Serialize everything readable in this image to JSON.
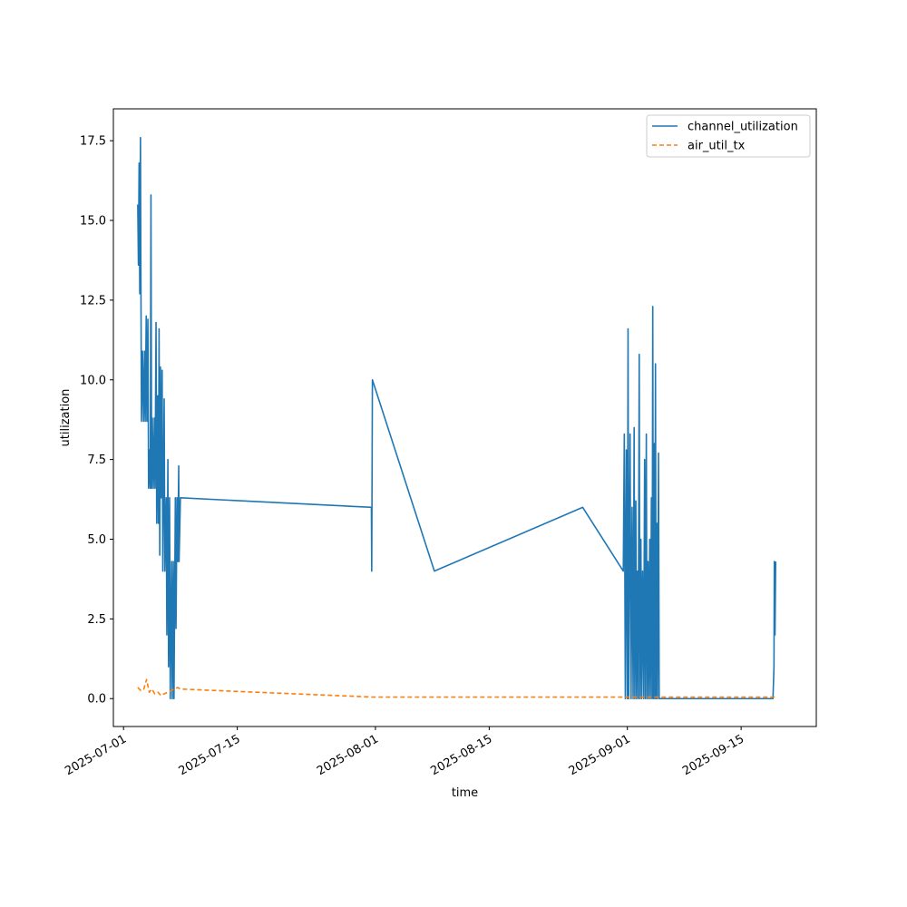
{
  "chart_data": {
    "type": "line",
    "title": "",
    "xlabel": "time",
    "ylabel": "utilization",
    "x_scale": "date",
    "xlim": [
      "2025-06-29T18:00",
      "2025-09-24T06:00"
    ],
    "ylim": [
      -0.875,
      18.5
    ],
    "x_ticks": [
      "2025-07-01",
      "2025-07-15",
      "2025-08-01",
      "2025-08-15",
      "2025-09-01",
      "2025-09-15"
    ],
    "y_ticks": [
      "0.0",
      "2.5",
      "5.0",
      "7.5",
      "10.0",
      "12.5",
      "15.0",
      "17.5"
    ],
    "grid": false,
    "legend_position": "top-right",
    "series": [
      {
        "name": "channel_utilization",
        "color": "#1f77b4",
        "style": "solid",
        "points": [
          [
            "2025-07-02T18:00",
            15.5
          ],
          [
            "2025-07-02T20:00",
            13.6
          ],
          [
            "2025-07-02T22:00",
            16.8
          ],
          [
            "2025-07-03T00:00",
            12.7
          ],
          [
            "2025-07-03T02:00",
            17.6
          ],
          [
            "2025-07-03T03:00",
            14.0
          ],
          [
            "2025-07-03T05:00",
            8.7
          ],
          [
            "2025-07-03T08:00",
            10.9
          ],
          [
            "2025-07-03T11:00",
            8.7
          ],
          [
            "2025-07-03T14:00",
            10.9
          ],
          [
            "2025-07-03T16:00",
            8.7
          ],
          [
            "2025-07-03T19:00",
            12.0
          ],
          [
            "2025-07-03T21:00",
            8.7
          ],
          [
            "2025-07-04T00:00",
            11.9
          ],
          [
            "2025-07-04T02:00",
            6.6
          ],
          [
            "2025-07-04T05:00",
            7.8
          ],
          [
            "2025-07-04T07:00",
            6.6
          ],
          [
            "2025-07-04T09:00",
            15.8
          ],
          [
            "2025-07-04T11:00",
            6.6
          ],
          [
            "2025-07-04T13:00",
            8.8
          ],
          [
            "2025-07-04T16:00",
            6.6
          ],
          [
            "2025-07-04T19:00",
            8.8
          ],
          [
            "2025-07-04T21:00",
            6.6
          ],
          [
            "2025-07-05T00:00",
            11.8
          ],
          [
            "2025-07-05T02:00",
            5.5
          ],
          [
            "2025-07-05T05:00",
            9.5
          ],
          [
            "2025-07-05T07:00",
            5.5
          ],
          [
            "2025-07-05T09:00",
            11.6
          ],
          [
            "2025-07-05T11:00",
            4.5
          ],
          [
            "2025-07-05T13:00",
            10.4
          ],
          [
            "2025-07-05T15:00",
            6.3
          ],
          [
            "2025-07-05T18:00",
            10.3
          ],
          [
            "2025-07-05T20:00",
            4.0
          ],
          [
            "2025-07-06T00:00",
            9.4
          ],
          [
            "2025-07-06T02:00",
            4.0
          ],
          [
            "2025-07-06T06:00",
            6.3
          ],
          [
            "2025-07-06T08:00",
            2.0
          ],
          [
            "2025-07-06T11:00",
            7.5
          ],
          [
            "2025-07-06T13:00",
            1.0
          ],
          [
            "2025-07-06T16:00",
            6.3
          ],
          [
            "2025-07-06T18:00",
            0.0
          ],
          [
            "2025-07-06T22:00",
            4.3
          ],
          [
            "2025-07-07T00:00",
            0.0
          ],
          [
            "2025-07-07T03:00",
            4.3
          ],
          [
            "2025-07-07T05:00",
            0.0
          ],
          [
            "2025-07-07T09:00",
            6.3
          ],
          [
            "2025-07-07T11:00",
            2.2
          ],
          [
            "2025-07-07T14:00",
            6.3
          ],
          [
            "2025-07-07T16:00",
            4.3
          ],
          [
            "2025-07-07T19:00",
            7.3
          ],
          [
            "2025-07-07T20:00",
            4.3
          ],
          [
            "2025-07-08T00:00",
            6.3
          ],
          [
            "2025-07-31T12:00",
            6.0
          ],
          [
            "2025-07-31T13:00",
            4.0
          ],
          [
            "2025-07-31T15:00",
            10.0
          ],
          [
            "2025-08-08T06:00",
            4.0
          ],
          [
            "2025-08-26T12:00",
            6.0
          ],
          [
            "2025-08-31T12:00",
            4.0
          ],
          [
            "2025-08-31T15:00",
            8.3
          ],
          [
            "2025-08-31T18:00",
            0.0
          ],
          [
            "2025-08-31T21:00",
            7.8
          ],
          [
            "2025-09-01T00:00",
            0.0
          ],
          [
            "2025-09-01T02:00",
            11.6
          ],
          [
            "2025-09-01T04:00",
            0.0
          ],
          [
            "2025-09-01T08:00",
            8.3
          ],
          [
            "2025-09-01T11:00",
            0.0
          ],
          [
            "2025-09-01T14:00",
            6.0
          ],
          [
            "2025-09-01T17:00",
            0.0
          ],
          [
            "2025-09-01T20:00",
            8.5
          ],
          [
            "2025-09-01T22:00",
            0.0
          ],
          [
            "2025-09-02T01:00",
            6.2
          ],
          [
            "2025-09-02T03:00",
            0.0
          ],
          [
            "2025-09-02T06:00",
            4.0
          ],
          [
            "2025-09-02T08:00",
            0.0
          ],
          [
            "2025-09-02T11:00",
            10.8
          ],
          [
            "2025-09-02T13:00",
            0.0
          ],
          [
            "2025-09-02T16:00",
            5.0
          ],
          [
            "2025-09-02T18:00",
            0.0
          ],
          [
            "2025-09-02T21:00",
            4.0
          ],
          [
            "2025-09-03T00:00",
            0.0
          ],
          [
            "2025-09-03T03:00",
            7.5
          ],
          [
            "2025-09-03T05:00",
            0.0
          ],
          [
            "2025-09-03T08:00",
            8.3
          ],
          [
            "2025-09-03T10:00",
            0.0
          ],
          [
            "2025-09-03T13:00",
            4.3
          ],
          [
            "2025-09-03T15:00",
            0.0
          ],
          [
            "2025-09-03T18:00",
            5.0
          ],
          [
            "2025-09-03T20:00",
            0.0
          ],
          [
            "2025-09-03T23:00",
            6.3
          ],
          [
            "2025-09-04T01:00",
            0.0
          ],
          [
            "2025-09-04T03:00",
            12.3
          ],
          [
            "2025-09-04T05:00",
            0.0
          ],
          [
            "2025-09-04T07:00",
            8.0
          ],
          [
            "2025-09-04T09:00",
            0.0
          ],
          [
            "2025-09-04T11:00",
            10.5
          ],
          [
            "2025-09-04T13:00",
            0.0
          ],
          [
            "2025-09-04T15:00",
            5.5
          ],
          [
            "2025-09-04T17:00",
            0.0
          ],
          [
            "2025-09-04T20:00",
            7.7
          ],
          [
            "2025-09-04T22:00",
            0.0
          ],
          [
            "2025-09-18T22:00",
            0.0
          ],
          [
            "2025-09-19T01:00",
            1.0
          ],
          [
            "2025-09-19T02:00",
            4.3
          ],
          [
            "2025-09-19T04:00",
            2.0
          ],
          [
            "2025-09-19T06:00",
            4.3
          ]
        ]
      },
      {
        "name": "air_util_tx",
        "color": "#ff7f0e",
        "style": "dashed",
        "points": [
          [
            "2025-07-02T18:00",
            0.35
          ],
          [
            "2025-07-03T03:00",
            0.25
          ],
          [
            "2025-07-03T12:00",
            0.3
          ],
          [
            "2025-07-03T20:00",
            0.6
          ],
          [
            "2025-07-04T04:00",
            0.2
          ],
          [
            "2025-07-04T12:00",
            0.3
          ],
          [
            "2025-07-04T20:00",
            0.15
          ],
          [
            "2025-07-05T06:00",
            0.2
          ],
          [
            "2025-07-05T14:00",
            0.1
          ],
          [
            "2025-07-06T00:00",
            0.15
          ],
          [
            "2025-07-06T10:00",
            0.2
          ],
          [
            "2025-07-06T20:00",
            0.25
          ],
          [
            "2025-07-07T06:00",
            0.3
          ],
          [
            "2025-07-07T16:00",
            0.35
          ],
          [
            "2025-07-08T00:00",
            0.3
          ],
          [
            "2025-07-31T12:00",
            0.05
          ],
          [
            "2025-08-31T12:00",
            0.05
          ],
          [
            "2025-09-19T06:00",
            0.05
          ]
        ]
      }
    ]
  }
}
